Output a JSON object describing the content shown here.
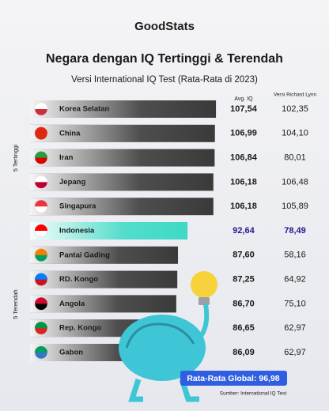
{
  "logo": "GoodStats",
  "chart_data": {
    "type": "bar",
    "orientation": "horizontal",
    "title": "Negara dengan IQ Tertinggi & Terendah",
    "subtitle": "Versi International IQ Test (Rata-Rata di 2023)",
    "categories": [
      "Korea Selatan",
      "China",
      "Iran",
      "Jepang",
      "Singapura",
      "Indonesia",
      "Pantai Gading",
      "RD. Kongo",
      "Angola",
      "Rep. Kongo",
      "Gabon"
    ],
    "series": [
      {
        "name": "Avg. IQ",
        "colors": [
          "#3a3a3a",
          "#3a3a3a",
          "#3a3a3a",
          "#3a3a3a",
          "#3a3a3a",
          "#3fd9c6",
          "#3a3a3a",
          "#3a3a3a",
          "#3a3a3a",
          "#3a3a3a",
          "#3a3a3a"
        ],
        "values": [
          107.54,
          106.99,
          106.84,
          106.18,
          106.18,
          92.64,
          87.6,
          87.25,
          86.7,
          86.65,
          86.09
        ],
        "value_labels": [
          "107,54",
          "106,99",
          "106,84",
          "106,18",
          "106,18",
          "92,64",
          "87,60",
          "87,25",
          "86,70",
          "86,65",
          "86,09"
        ]
      },
      {
        "name": "Versi Richard Lynn",
        "values": [
          102.35,
          104.1,
          80.01,
          106.48,
          105.89,
          78.49,
          58.16,
          64.92,
          75.1,
          62.97,
          62.97
        ],
        "value_labels": [
          "102,35",
          "104,10",
          "80,01",
          "106,48",
          "105,89",
          "78,49",
          "58,16",
          "64,92",
          "75,10",
          "62,97",
          "62,97"
        ]
      }
    ],
    "highlight_label_color": "#1f1a8c",
    "xlim": [
      10,
      110
    ],
    "groups": [
      "5 Tertinggi",
      "5 Terendah"
    ],
    "annotation": "Rata-Rata Global: 96,98",
    "source": "Sumber: International IQ Test"
  }
}
